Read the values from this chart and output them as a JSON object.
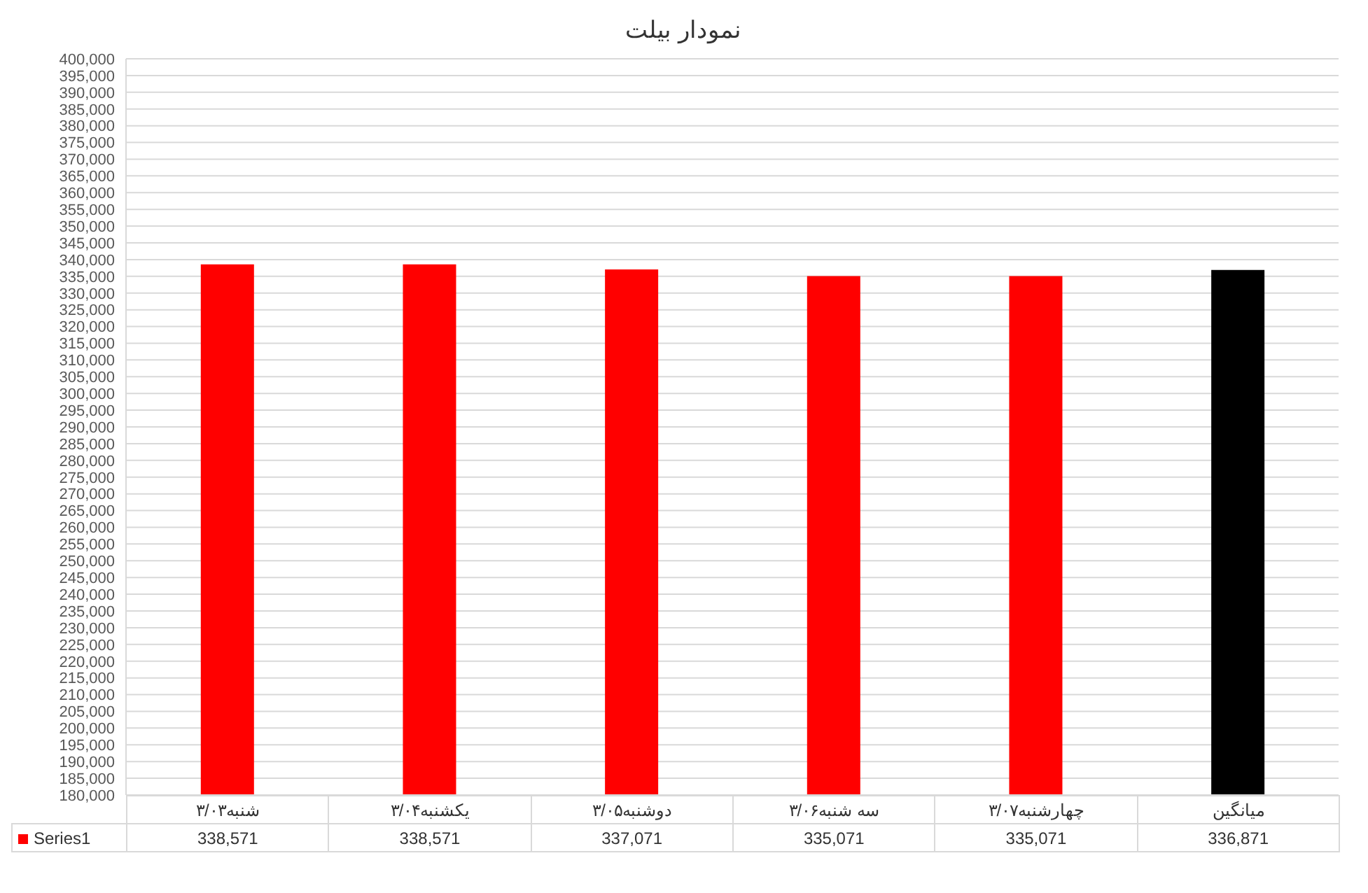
{
  "chart_data": {
    "type": "bar",
    "title": "نمودار بیلت",
    "categories": [
      "شنبه۳/۰۳",
      "یکشنبه۳/۰۴",
      "دوشنبه۳/۰۵",
      "سه شنبه۳/۰۶",
      "چهارشنبه۳/۰۷",
      "میانگین"
    ],
    "series": [
      {
        "name": "Series1",
        "color": "#ff0000",
        "colors": [
          "#ff0000",
          "#ff0000",
          "#ff0000",
          "#ff0000",
          "#ff0000",
          "#000000"
        ],
        "values": [
          338571,
          338571,
          337071,
          335071,
          335071,
          336871
        ],
        "value_labels": [
          "338,571",
          "338,571",
          "337,071",
          "335,071",
          "335,071",
          "336,871"
        ]
      }
    ],
    "ylim": [
      180000,
      400000
    ],
    "yticks": [
      {
        "value": 180000,
        "label": "180,000"
      },
      {
        "value": 185000,
        "label": "185,000"
      },
      {
        "value": 190000,
        "label": "190,000"
      },
      {
        "value": 195000,
        "label": "195,000"
      },
      {
        "value": 200000,
        "label": "200,000"
      },
      {
        "value": 205000,
        "label": "205,000"
      },
      {
        "value": 210000,
        "label": "210,000"
      },
      {
        "value": 215000,
        "label": "215,000"
      },
      {
        "value": 220000,
        "label": "220,000"
      },
      {
        "value": 225000,
        "label": "225,000"
      },
      {
        "value": 230000,
        "label": "230,000"
      },
      {
        "value": 235000,
        "label": "235,000"
      },
      {
        "value": 240000,
        "label": "240,000"
      },
      {
        "value": 245000,
        "label": "245,000"
      },
      {
        "value": 250000,
        "label": "250,000"
      },
      {
        "value": 255000,
        "label": "255,000"
      },
      {
        "value": 260000,
        "label": "260,000"
      },
      {
        "value": 265000,
        "label": "265,000"
      },
      {
        "value": 270000,
        "label": "270,000"
      },
      {
        "value": 275000,
        "label": "275,000"
      },
      {
        "value": 280000,
        "label": "280,000"
      },
      {
        "value": 285000,
        "label": "285,000"
      },
      {
        "value": 290000,
        "label": "290,000"
      },
      {
        "value": 295000,
        "label": "295,000"
      },
      {
        "value": 300000,
        "label": "300,000"
      },
      {
        "value": 305000,
        "label": "305,000"
      },
      {
        "value": 310000,
        "label": "310,000"
      },
      {
        "value": 315000,
        "label": "315,000"
      },
      {
        "value": 320000,
        "label": "320,000"
      },
      {
        "value": 325000,
        "label": "325,000"
      },
      {
        "value": 330000,
        "label": "330,000"
      },
      {
        "value": 335000,
        "label": "335,000"
      },
      {
        "value": 340000,
        "label": "340,000"
      },
      {
        "value": 345000,
        "label": "345,000"
      },
      {
        "value": 350000,
        "label": "350,000"
      },
      {
        "value": 355000,
        "label": "355,000"
      },
      {
        "value": 360000,
        "label": "360,000"
      },
      {
        "value": 365000,
        "label": "365,000"
      },
      {
        "value": 370000,
        "label": "370,000"
      },
      {
        "value": 375000,
        "label": "375,000"
      },
      {
        "value": 380000,
        "label": "380,000"
      },
      {
        "value": 385000,
        "label": "385,000"
      },
      {
        "value": 390000,
        "label": "390,000"
      },
      {
        "value": 395000,
        "label": "395,000"
      },
      {
        "value": 400000,
        "label": "400,000"
      }
    ],
    "grid": "y",
    "legend": "bottom"
  }
}
